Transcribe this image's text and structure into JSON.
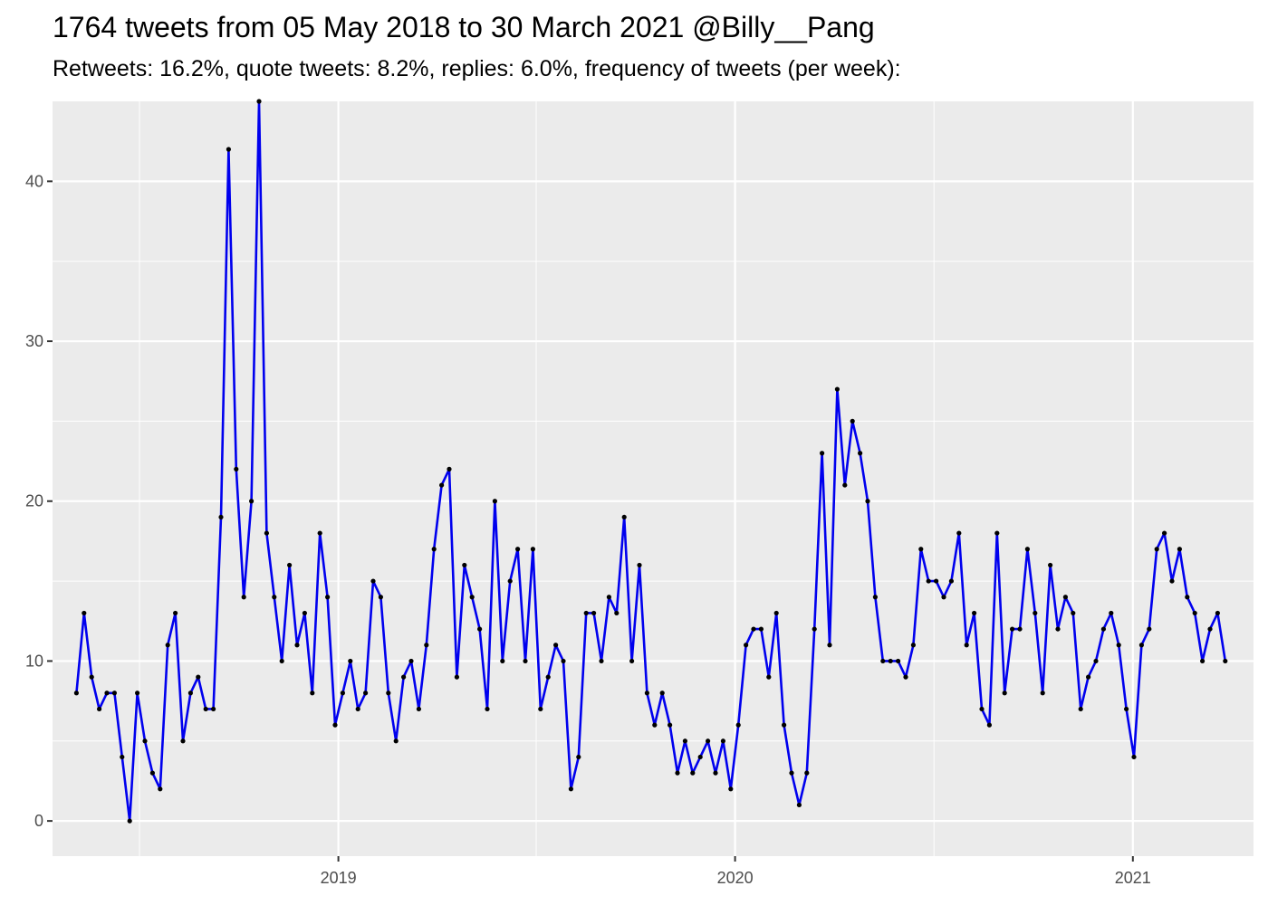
{
  "chart_data": {
    "type": "line",
    "title": "1764 tweets from 05 May 2018 to 30 March 2021 @Billy__Pang",
    "subtitle": "Retweets: 16.2%, quote tweets: 8.2%, replies: 6.0%, frequency of tweets (per week):",
    "xlabel": "",
    "ylabel": "",
    "x_axis": {
      "type": "date",
      "range": [
        "2018-04-13",
        "2021-04-22"
      ],
      "ticks": [
        "2019",
        "2020",
        "2021"
      ]
    },
    "y_axis": {
      "range": [
        -2.2,
        45
      ],
      "ticks": [
        0,
        10,
        20,
        30,
        40
      ]
    },
    "grid": true,
    "legend": "none",
    "colors": {
      "line": "#0000ee",
      "points": "#000000",
      "panel": "#ebebeb",
      "grid": "#ffffff"
    },
    "series": [
      {
        "x": [
          "2018-05-05",
          "2018-05-12",
          "2018-05-19",
          "2018-05-26",
          "2018-06-02",
          "2018-06-09",
          "2018-06-16",
          "2018-06-23",
          "2018-06-30",
          "2018-07-07",
          "2018-07-14",
          "2018-07-21",
          "2018-07-28",
          "2018-08-04",
          "2018-08-11",
          "2018-08-18",
          "2018-08-25",
          "2018-09-01",
          "2018-09-08",
          "2018-09-15",
          "2018-09-22",
          "2018-09-29",
          "2018-10-06",
          "2018-10-13",
          "2018-10-20",
          "2018-10-27",
          "2018-11-03",
          "2018-11-10",
          "2018-11-17",
          "2018-11-24",
          "2018-12-01",
          "2018-12-08",
          "2018-12-15",
          "2018-12-22",
          "2018-12-29",
          "2019-01-05",
          "2019-01-12",
          "2019-01-19",
          "2019-01-26",
          "2019-02-02",
          "2019-02-09",
          "2019-02-16",
          "2019-02-23",
          "2019-03-02",
          "2019-03-09",
          "2019-03-16",
          "2019-03-23",
          "2019-03-30",
          "2019-04-06",
          "2019-04-13",
          "2019-04-20",
          "2019-04-27",
          "2019-05-04",
          "2019-05-11",
          "2019-05-18",
          "2019-05-25",
          "2019-06-01",
          "2019-06-08",
          "2019-06-15",
          "2019-06-22",
          "2019-06-29",
          "2019-07-06",
          "2019-07-13",
          "2019-07-20",
          "2019-07-27",
          "2019-08-03",
          "2019-08-10",
          "2019-08-17",
          "2019-08-24",
          "2019-08-31",
          "2019-09-07",
          "2019-09-14",
          "2019-09-21",
          "2019-09-28",
          "2019-10-05",
          "2019-10-12",
          "2019-10-19",
          "2019-10-26",
          "2019-11-02",
          "2019-11-09",
          "2019-11-16",
          "2019-11-23",
          "2019-11-30",
          "2019-12-07",
          "2019-12-14",
          "2019-12-21",
          "2019-12-28",
          "2020-01-04",
          "2020-01-11",
          "2020-01-18",
          "2020-01-25",
          "2020-02-01",
          "2020-02-08",
          "2020-02-15",
          "2020-02-22",
          "2020-02-29",
          "2020-03-07",
          "2020-03-14",
          "2020-03-21",
          "2020-03-28",
          "2020-04-04",
          "2020-04-11",
          "2020-04-18",
          "2020-04-25",
          "2020-05-02",
          "2020-05-09",
          "2020-05-16",
          "2020-05-23",
          "2020-05-30",
          "2020-06-06",
          "2020-06-13",
          "2020-06-20",
          "2020-06-27",
          "2020-07-04",
          "2020-07-11",
          "2020-07-18",
          "2020-07-25",
          "2020-08-01",
          "2020-08-08",
          "2020-08-15",
          "2020-08-22",
          "2020-08-29",
          "2020-09-05",
          "2020-09-12",
          "2020-09-19",
          "2020-09-26",
          "2020-10-03",
          "2020-10-10",
          "2020-10-17",
          "2020-10-24",
          "2020-10-31",
          "2020-11-07",
          "2020-11-14",
          "2020-11-21",
          "2020-11-28",
          "2020-12-05",
          "2020-12-12",
          "2020-12-19",
          "2020-12-26",
          "2021-01-02",
          "2021-01-09",
          "2021-01-16",
          "2021-01-23",
          "2021-01-30",
          "2021-02-06",
          "2021-02-13",
          "2021-02-20",
          "2021-02-27",
          "2021-03-06",
          "2021-03-13",
          "2021-03-20",
          "2021-03-27"
        ],
        "values": [
          8,
          13,
          9,
          7,
          8,
          8,
          4,
          0,
          8,
          5,
          3,
          2,
          11,
          13,
          5,
          8,
          9,
          7,
          7,
          19,
          42,
          22,
          14,
          20,
          45,
          18,
          14,
          10,
          16,
          11,
          13,
          8,
          18,
          14,
          6,
          8,
          10,
          7,
          8,
          15,
          14,
          8,
          5,
          9,
          10,
          7,
          11,
          17,
          21,
          22,
          9,
          16,
          14,
          12,
          7,
          20,
          10,
          15,
          17,
          10,
          17,
          7,
          9,
          11,
          10,
          2,
          4,
          13,
          13,
          10,
          14,
          13,
          19,
          10,
          16,
          8,
          6,
          8,
          6,
          3,
          5,
          3,
          4,
          5,
          3,
          5,
          2,
          6,
          11,
          12,
          12,
          9,
          13,
          6,
          3,
          1,
          3,
          12,
          23,
          11,
          27,
          21,
          25,
          23,
          20,
          14,
          10,
          10,
          10,
          9,
          11,
          17,
          15,
          15,
          14,
          15,
          18,
          11,
          13,
          7,
          6,
          18,
          8,
          12,
          12,
          17,
          13,
          8,
          16,
          12,
          14,
          13,
          7,
          9,
          10,
          12,
          13,
          11,
          7,
          4,
          11,
          12,
          17,
          18,
          15,
          17,
          14,
          13,
          10,
          12,
          13,
          10
        ]
      }
    ]
  }
}
